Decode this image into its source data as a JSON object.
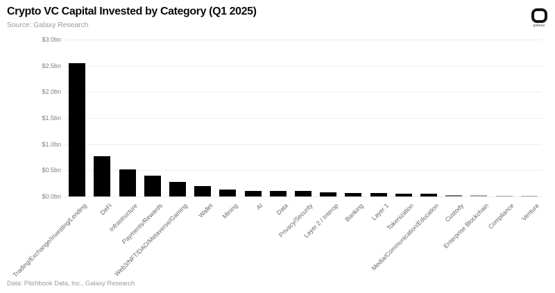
{
  "header": {
    "title": "Crypto VC Capital Invested by Category (Q1 2025)",
    "source": "Source: Galaxy Research",
    "logo_text": "galaxy"
  },
  "footer": {
    "text": "Data: Pitchbook Data, Inc., Galaxy Research"
  },
  "chart_data": {
    "type": "bar",
    "title": "Crypto VC Capital Invested by Category (Q1 2025)",
    "subtitle": "Source: Galaxy Research",
    "unit": "USD billions",
    "categories": [
      "Trading/Exchange/Investing/Lending",
      "DeFi",
      "Infrastructure",
      "Payments/Rewards",
      "Web3/NFT/DAO/Metaverse/Gaming",
      "Wallet",
      "Mining",
      "AI",
      "Data",
      "Privacy/Security",
      "Layer 2 / Interop",
      "Banking",
      "Layer 1",
      "Tokenization",
      "Media/Communication/Education",
      "Custody",
      "Enterprise Blockchain",
      "Compliance",
      "Venture"
    ],
    "values": [
      2.55,
      0.77,
      0.52,
      0.4,
      0.28,
      0.2,
      0.13,
      0.11,
      0.11,
      0.1,
      0.08,
      0.07,
      0.065,
      0.055,
      0.05,
      0.03,
      0.02,
      0.015,
      0.01
    ],
    "ylim": [
      0,
      3.0
    ],
    "y_tick_values": [
      0,
      0.5,
      1.0,
      1.5,
      2.0,
      2.5,
      3.0
    ],
    "y_tick_labels": [
      "$0.0bn",
      "$0.5bn",
      "$1.0bn",
      "$1.5bn",
      "$2.0bn",
      "$2.5bn",
      "$3.0bn"
    ],
    "xlabel": "",
    "ylabel": "",
    "grid": true,
    "grid_color": "#ededed",
    "bar_color": "#000000",
    "legend": "none"
  }
}
